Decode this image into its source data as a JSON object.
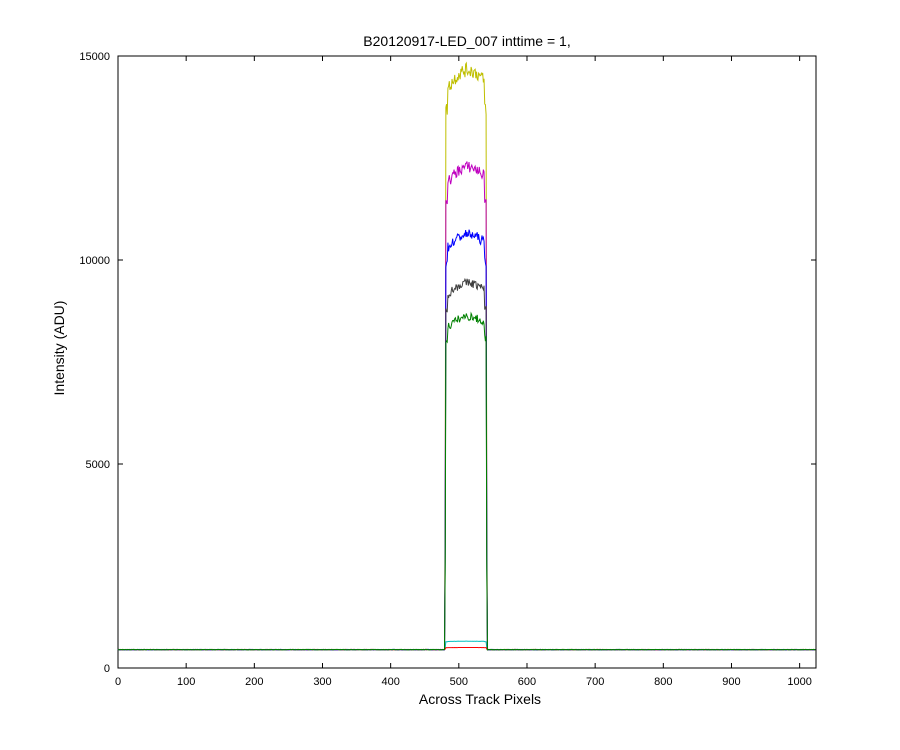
{
  "chart_data": {
    "type": "line",
    "title": "B20120917-LED_007 inttime = 1,",
    "xlabel": "Across Track Pixels",
    "ylabel": "Intensity (ADU)",
    "xlim": [
      0,
      1024
    ],
    "ylim": [
      0,
      15000
    ],
    "xticks": [
      0,
      100,
      200,
      300,
      400,
      500,
      600,
      700,
      800,
      900,
      1000
    ],
    "yticks": [
      0,
      5000,
      10000,
      15000
    ],
    "grid": false,
    "legend": "none",
    "baseline": 450,
    "plateau_start": 481,
    "plateau_end": 540,
    "series": [
      {
        "color": "#00BFBF",
        "plateau": 650
      },
      {
        "color": "#FF0000",
        "plateau": 500
      },
      {
        "color": "#BFBF00",
        "plateau": 14200
      },
      {
        "color": "#BF00BF",
        "plateau": 11900
      },
      {
        "color": "#0000FF",
        "plateau": 10300
      },
      {
        "color": "#404040",
        "plateau": 9150
      },
      {
        "color": "#008000",
        "plateau": 8350
      }
    ]
  }
}
